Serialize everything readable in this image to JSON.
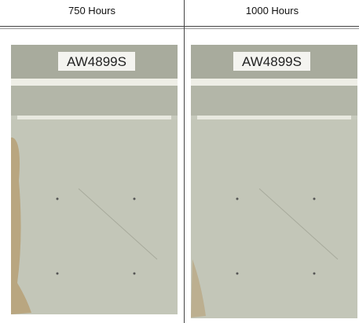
{
  "columns": [
    {
      "header": "750 Hours",
      "label": "AW4899S"
    },
    {
      "header": "1000 Hours",
      "label": "AW4899S"
    }
  ]
}
